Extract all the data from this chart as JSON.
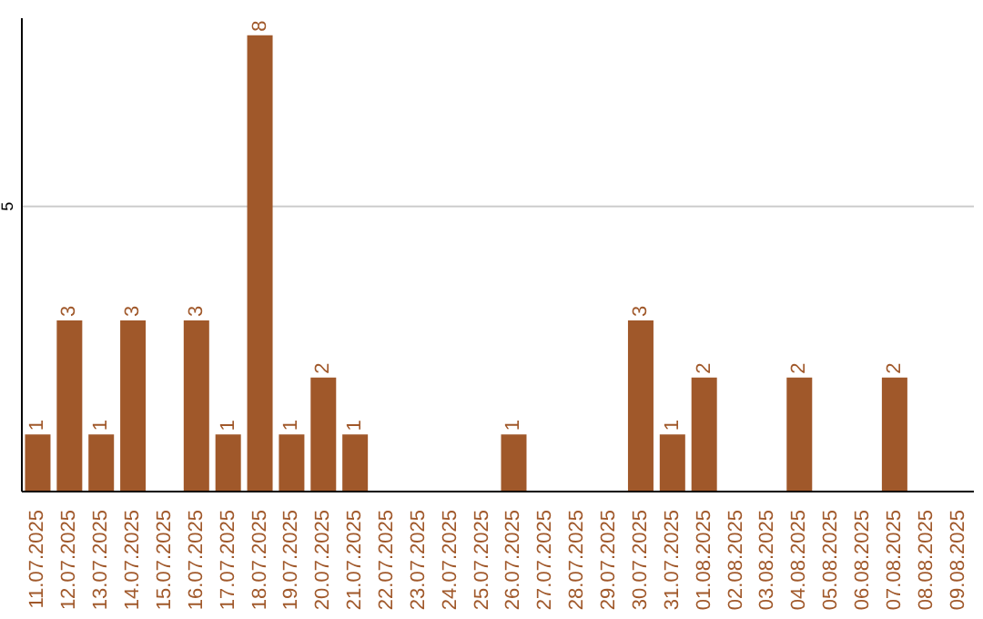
{
  "chart_data": {
    "type": "bar",
    "categories": [
      "11.07.2025",
      "12.07.2025",
      "13.07.2025",
      "14.07.2025",
      "15.07.2025",
      "16.07.2025",
      "17.07.2025",
      "18.07.2025",
      "19.07.2025",
      "20.07.2025",
      "21.07.2025",
      "22.07.2025",
      "23.07.2025",
      "24.07.2025",
      "25.07.2025",
      "26.07.2025",
      "27.07.2025",
      "28.07.2025",
      "29.07.2025",
      "30.07.2025",
      "31.07.2025",
      "01.08.2025",
      "02.08.2025",
      "03.08.2025",
      "04.08.2025",
      "05.08.2025",
      "06.08.2025",
      "07.08.2025",
      "08.08.2025",
      "09.08.2025"
    ],
    "values": [
      1,
      3,
      1,
      3,
      0,
      3,
      1,
      8,
      1,
      2,
      1,
      0,
      0,
      0,
      0,
      1,
      0,
      0,
      0,
      3,
      1,
      2,
      0,
      0,
      2,
      0,
      0,
      2,
      0,
      0
    ],
    "value_labels": [
      "1",
      "3",
      "1",
      "3",
      null,
      "3",
      "1",
      "8",
      "1",
      "2",
      "1",
      null,
      null,
      null,
      null,
      "1",
      null,
      null,
      null,
      "3",
      "1",
      "2",
      null,
      null,
      "2",
      null,
      null,
      "2",
      null,
      null
    ],
    "color": "#a0582a",
    "ylim": [
      0,
      8.3
    ],
    "yticks": [
      5
    ],
    "grid": "y",
    "legend": false
  }
}
